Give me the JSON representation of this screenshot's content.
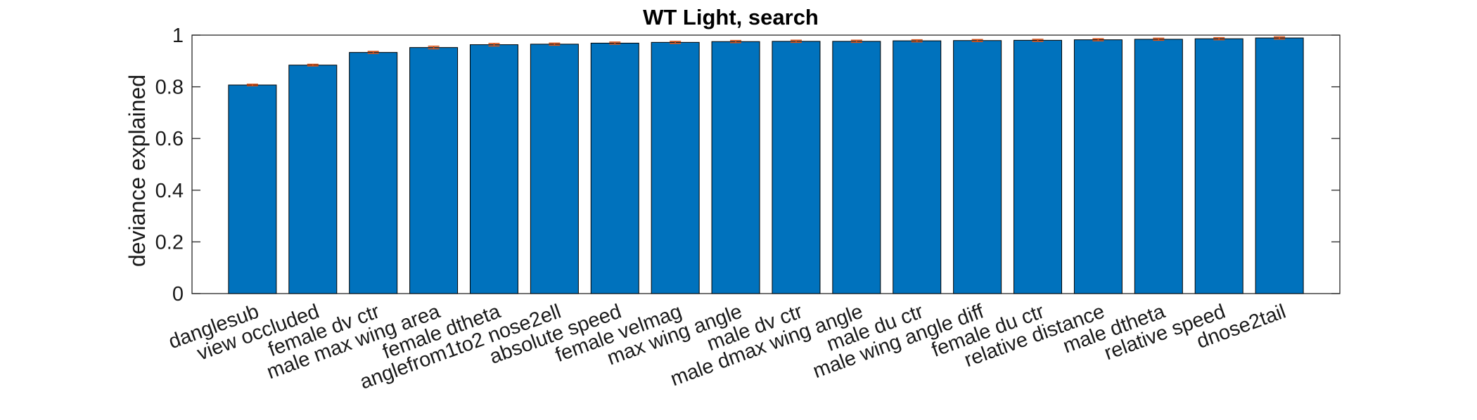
{
  "chart_data": {
    "type": "bar",
    "title": "WT Light, search",
    "xlabel": "",
    "ylabel": "deviance explained",
    "ylim": [
      0,
      1
    ],
    "yticks": [
      0,
      0.2,
      0.4,
      0.6,
      0.8,
      1
    ],
    "ytick_labels": [
      "0",
      "0.2",
      "0.4",
      "0.6",
      "0.8",
      "1"
    ],
    "categories": [
      "danglesub",
      "view occluded",
      "female dv ctr",
      "male max wing area",
      "female dtheta",
      "anglefrom1to2 nose2ell",
      "absolute speed",
      "female velmag",
      "max wing angle",
      "male dv ctr",
      "male dmax wing angle",
      "male du ctr",
      "male wing angle diff",
      "female du ctr",
      "relative distance",
      "male dtheta",
      "relative speed",
      "dnose2tail"
    ],
    "values": [
      0.807,
      0.884,
      0.933,
      0.952,
      0.963,
      0.965,
      0.969,
      0.972,
      0.975,
      0.976,
      0.976,
      0.978,
      0.979,
      0.98,
      0.982,
      0.984,
      0.986,
      0.989
    ],
    "errors": [
      0.003,
      0.003,
      0.004,
      0.005,
      0.005,
      0.004,
      0.004,
      0.004,
      0.004,
      0.004,
      0.004,
      0.004,
      0.004,
      0.004,
      0.004,
      0.004,
      0.004,
      0.004
    ],
    "grid": false,
    "colors": {
      "bar": "#0072bd",
      "bar_edge": "#000000",
      "error": "#d95319"
    }
  }
}
